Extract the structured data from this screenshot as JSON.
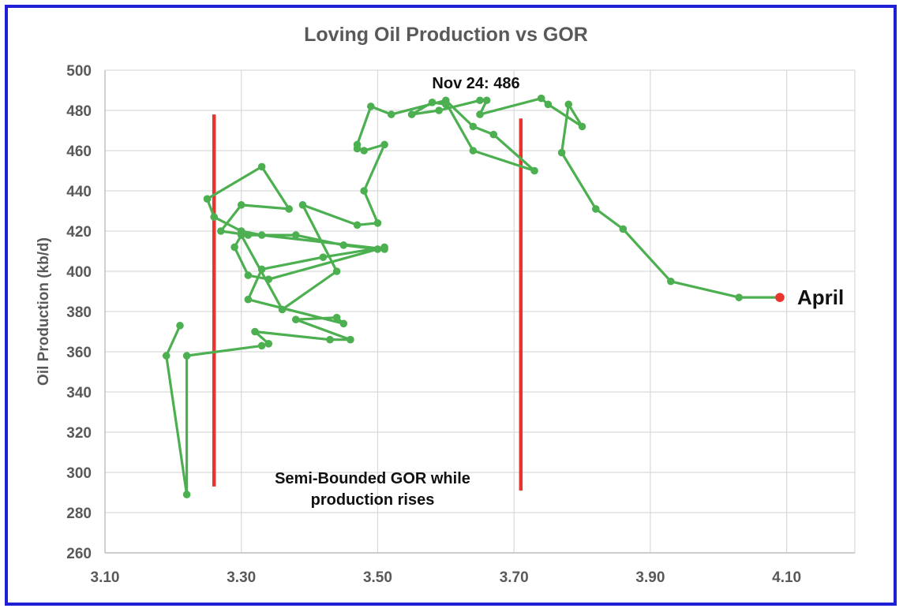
{
  "chart_data": {
    "type": "line",
    "title": "Loving Oil Production vs GOR",
    "xlabel": "",
    "ylabel": "Oil Production (kb/d)",
    "xlim": [
      3.1,
      4.2
    ],
    "ylim": [
      260,
      500
    ],
    "x_ticks": [
      "3.10",
      "3.30",
      "3.50",
      "3.70",
      "3.90",
      "4.10"
    ],
    "x_tick_values": [
      3.1,
      3.3,
      3.5,
      3.7,
      3.9,
      4.1
    ],
    "y_ticks": [
      "260",
      "280",
      "300",
      "320",
      "340",
      "360",
      "380",
      "400",
      "420",
      "440",
      "460",
      "480",
      "500"
    ],
    "y_tick_values": [
      260,
      280,
      300,
      320,
      340,
      360,
      380,
      400,
      420,
      440,
      460,
      480,
      500
    ],
    "grid": true,
    "series": [
      {
        "color": "#4caf50",
        "x": [
          3.21,
          3.19,
          3.22,
          3.22,
          3.33,
          3.34,
          3.32,
          3.43,
          3.46,
          3.38,
          3.44,
          3.45,
          3.31,
          3.33,
          3.42,
          3.51,
          3.51,
          3.33,
          3.3,
          3.26,
          3.25,
          3.33,
          3.37,
          3.3,
          3.27,
          3.31,
          3.38,
          3.45,
          3.5,
          3.34,
          3.31,
          3.29,
          3.3,
          3.36,
          3.44,
          3.39,
          3.47,
          3.5,
          3.48,
          3.51,
          3.48,
          3.47,
          3.47,
          3.49,
          3.52,
          3.6,
          3.64,
          3.67,
          3.73,
          3.64,
          3.6,
          3.6,
          3.58,
          3.55,
          3.59,
          3.65,
          3.66,
          3.65,
          3.74,
          3.75,
          3.8,
          3.78,
          3.77,
          3.82,
          3.86,
          3.93,
          4.03,
          4.09
        ],
        "y": [
          373,
          358,
          289,
          358,
          363,
          364,
          370,
          366,
          366,
          376,
          377,
          374,
          386,
          401,
          407,
          412,
          411,
          418,
          420,
          427,
          436,
          452,
          431,
          433,
          420,
          418,
          418,
          413,
          411,
          396,
          398,
          412,
          418,
          381,
          400,
          433,
          423,
          424,
          440,
          463,
          460,
          461,
          463,
          482,
          478,
          485,
          472,
          468,
          450,
          460,
          484,
          483,
          484,
          478,
          480,
          485,
          485,
          478,
          486,
          483,
          472,
          483,
          459,
          431,
          421,
          395,
          387,
          387
        ],
        "last_point_color": "#e8362e"
      }
    ],
    "vertical_lines": [
      {
        "x": 3.26,
        "y_from": 293,
        "y_to": 478,
        "color": "#e8362e"
      },
      {
        "x": 3.71,
        "y_from": 291,
        "y_to": 476,
        "color": "#e8362e"
      }
    ],
    "annotations": {
      "peak": "Nov 24: 486",
      "latest": "April",
      "note_line1": "Semi-Bounded GOR while",
      "note_line2": "production rises"
    }
  }
}
